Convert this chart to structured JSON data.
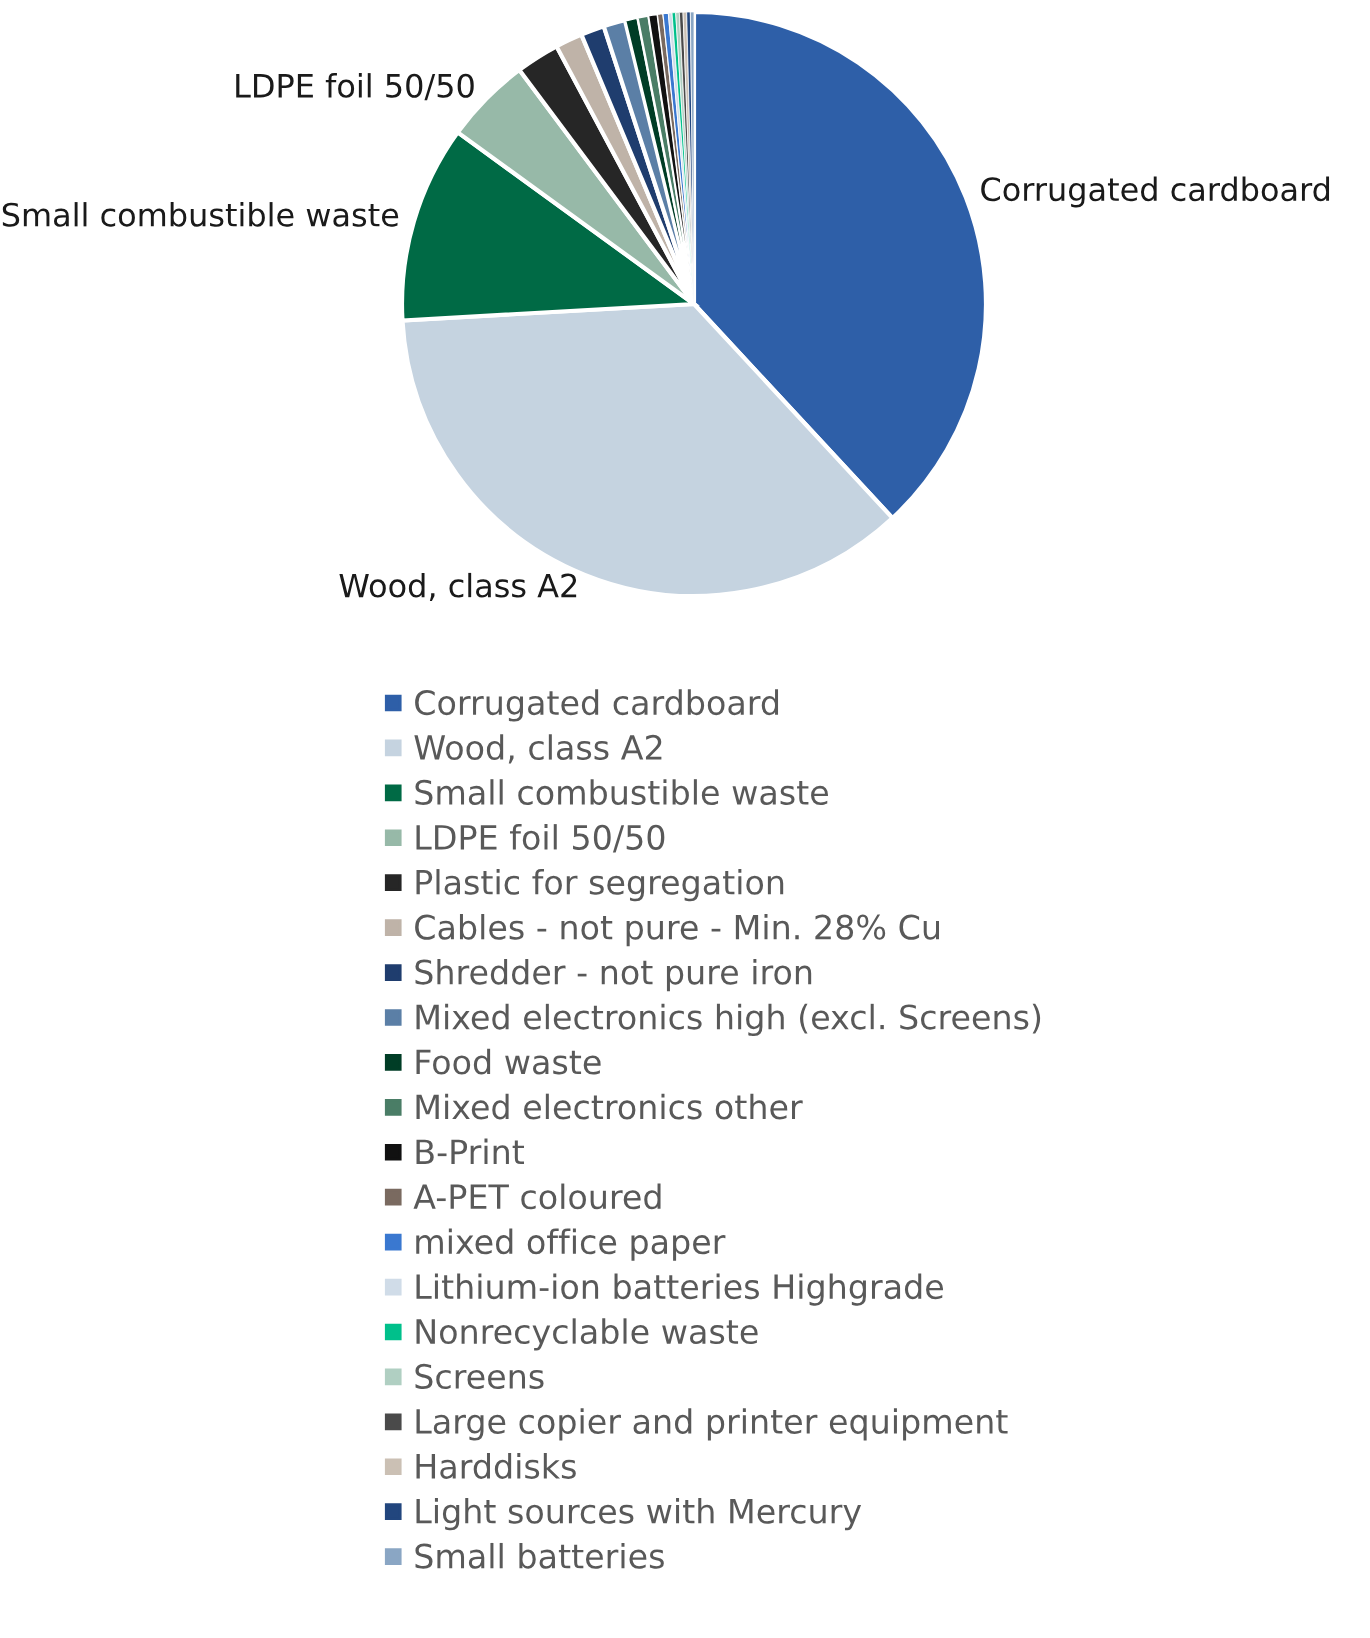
{
  "chart_data": {
    "type": "pie",
    "categories": [
      "Corrugated cardboard",
      "Wood, class A2",
      "Small combustible waste",
      "LDPE foil 50/50",
      "Plastic for segregation",
      "Cables - not pure - Min. 28% Cu",
      "Shredder - not pure iron",
      "Mixed electronics high (excl. Screens)",
      "Food waste",
      "Mixed electronics other",
      "B-Print",
      "A-PET coloured",
      "mixed office paper",
      "Lithium-ion batteries Highgrade",
      "Nonrecyclable waste",
      "Screens",
      "Large copier and printer equipment",
      "Harddisks",
      "Light sources with Mercury",
      "Small batteries"
    ],
    "values": [
      38.1,
      36.0,
      10.9,
      4.8,
      2.4,
      1.5,
      1.3,
      1.2,
      0.7,
      0.6,
      0.5,
      0.3,
      0.3,
      0.2,
      0.2,
      0.2,
      0.2,
      0.2,
      0.2,
      0.2
    ],
    "colors": [
      "#2e5fa8",
      "#c5d3e0",
      "#006a45",
      "#97b9a8",
      "#262626",
      "#bfb3a8",
      "#1f3d6e",
      "#5b7fa6",
      "#003d26",
      "#4a7d66",
      "#111111",
      "#7a6a60",
      "#3a78d0",
      "#d0dce8",
      "#00c08b",
      "#b0cfc2",
      "#4a4a4a",
      "#cbc0b4",
      "#22467e",
      "#8aa6c4"
    ],
    "annotations": [
      {
        "text": "Corrugated cardboard",
        "x": "Corrugated cardboard"
      },
      {
        "text": "Wood, class A2",
        "x": "Wood, class A2"
      },
      {
        "text": "Small combustible waste",
        "x": "Small combustible waste"
      },
      {
        "text": "LDPE foil 50/50",
        "x": "LDPE foil 50/50"
      }
    ],
    "legend": "bottom"
  }
}
